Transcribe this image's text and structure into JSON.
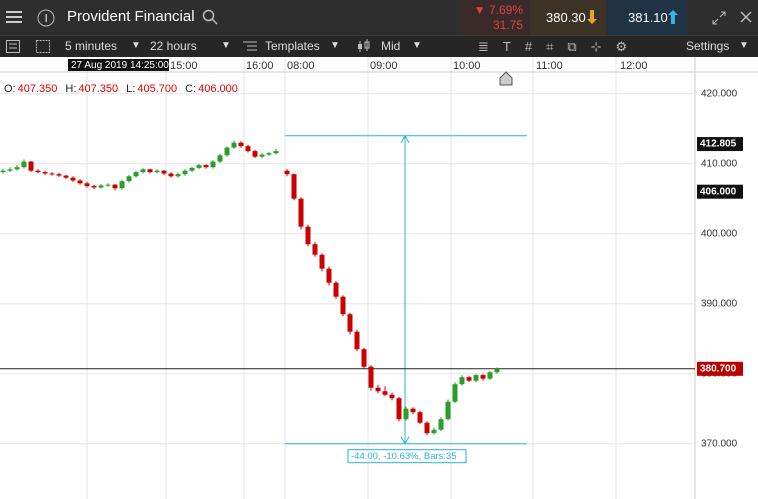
{
  "header": {
    "instrument": "Provident Financial",
    "change_pct": "▼ 7.69%",
    "change": "31.75",
    "sell": "380.30",
    "buy": "381.10"
  },
  "toolbar": {
    "interval": "5 minutes",
    "range": "22 hours",
    "templates": "Templates",
    "price_type": "Mid",
    "settings": "Settings"
  },
  "chart_data": {
    "type": "candlestick",
    "crosshair_time": "27 Aug 2019 14:25:00",
    "ohlc_labels": [
      {
        "label": "O:",
        "value": "407.350"
      },
      {
        "label": "H:",
        "value": "407.350"
      },
      {
        "label": "L:",
        "value": "405.700"
      },
      {
        "label": "C:",
        "value": "406.000"
      }
    ],
    "time_labels": [
      "15:00",
      "16:00",
      "08:00",
      "09:00",
      "10:00",
      "11:00",
      "12:00"
    ],
    "ylim": [
      362.1,
      423.1
    ],
    "yticks": [
      {
        "value": 370,
        "label": "370.000"
      },
      {
        "value": 380,
        "label": "380.000"
      },
      {
        "value": 390,
        "label": "390.000"
      },
      {
        "value": 400,
        "label": "400.000"
      },
      {
        "value": 410,
        "label": "410.000"
      },
      {
        "value": 420,
        "label": "420.000"
      }
    ],
    "price_tags": [
      {
        "value": 412.805,
        "label": "412.805"
      },
      {
        "value": 406,
        "label": "406.000"
      }
    ],
    "last_price": {
      "value": 380.7,
      "label": "380.700"
    },
    "measure": {
      "high": 414,
      "low": 370,
      "label": "-44.00, -10.63%, Bars:35"
    },
    "up_color": "#2a9d2a",
    "down_color": "#cc0000",
    "sessions": [
      {
        "candles": [
          [
            408.8,
            409.3,
            408.6,
            409.0
          ],
          [
            409.0,
            409.5,
            408.8,
            409.2
          ],
          [
            409.2,
            409.8,
            409.0,
            409.5
          ],
          [
            409.5,
            410.6,
            409.3,
            410.3
          ],
          [
            410.3,
            410.4,
            408.8,
            409.0
          ],
          [
            409.0,
            409.2,
            408.6,
            408.8
          ],
          [
            408.8,
            409.0,
            408.4,
            408.6
          ],
          [
            408.6,
            408.8,
            408.3,
            408.5
          ],
          [
            408.5,
            408.7,
            408.1,
            408.3
          ],
          [
            408.3,
            408.4,
            407.8,
            408.0
          ],
          [
            408.0,
            408.2,
            407.4,
            407.6
          ],
          [
            407.6,
            407.8,
            407.0,
            407.2
          ],
          [
            407.2,
            407.4,
            406.6,
            406.8
          ],
          [
            406.8,
            407.0,
            406.4,
            406.6
          ],
          [
            406.6,
            407.1,
            406.4,
            406.9
          ],
          [
            406.9,
            407.2,
            406.7,
            407.0
          ],
          [
            407.0,
            407.1,
            406.2,
            406.5
          ],
          [
            406.5,
            407.7,
            406.3,
            407.5
          ],
          [
            407.5,
            408.4,
            407.3,
            408.2
          ],
          [
            408.2,
            409.0,
            408.0,
            408.8
          ],
          [
            408.8,
            409.4,
            408.6,
            409.2
          ],
          [
            409.2,
            409.3,
            408.6,
            408.8
          ],
          [
            408.8,
            409.2,
            408.6,
            409.0
          ],
          [
            409.0,
            409.1,
            408.4,
            408.6
          ],
          [
            408.6,
            408.8,
            408.0,
            408.2
          ],
          [
            408.2,
            408.7,
            408.0,
            408.5
          ],
          [
            408.5,
            409.2,
            408.3,
            409.0
          ],
          [
            409.0,
            409.6,
            408.8,
            409.4
          ],
          [
            409.4,
            410.0,
            409.2,
            409.8
          ],
          [
            409.8,
            409.9,
            409.3,
            409.5
          ],
          [
            409.5,
            410.5,
            409.3,
            410.3
          ],
          [
            410.3,
            411.4,
            410.1,
            411.2
          ],
          [
            411.2,
            412.5,
            411.0,
            412.3
          ],
          [
            412.3,
            413.3,
            412.1,
            413.0
          ],
          [
            413.0,
            413.2,
            412.3,
            412.5
          ],
          [
            412.5,
            412.7,
            411.6,
            411.8
          ],
          [
            411.8,
            412.0,
            410.8,
            411.0
          ],
          [
            411.0,
            411.5,
            410.8,
            411.3
          ],
          [
            411.3,
            411.7,
            411.1,
            411.5
          ],
          [
            411.5,
            412.1,
            411.3,
            411.8
          ]
        ]
      },
      {
        "candles": [
          [
            409.0,
            409.2,
            408.2,
            408.5
          ],
          [
            408.5,
            408.6,
            404.8,
            405.0
          ],
          [
            405.0,
            405.2,
            400.6,
            401.0
          ],
          [
            401.0,
            401.3,
            398.2,
            398.5
          ],
          [
            398.5,
            398.8,
            396.7,
            397.0
          ],
          [
            397.0,
            397.2,
            394.6,
            395.0
          ],
          [
            395.0,
            395.3,
            392.6,
            393.0
          ],
          [
            393.0,
            393.2,
            390.7,
            391.0
          ],
          [
            391.0,
            391.2,
            388.2,
            388.5
          ],
          [
            388.5,
            388.7,
            385.6,
            386.0
          ],
          [
            386.0,
            386.3,
            383.2,
            383.5
          ],
          [
            383.5,
            383.7,
            380.7,
            381.0
          ],
          [
            381.0,
            381.2,
            377.6,
            378.0
          ],
          [
            378.0,
            378.4,
            377.2,
            377.5
          ],
          [
            377.5,
            378.2,
            376.8,
            377.0
          ],
          [
            377.0,
            377.3,
            376.2,
            376.5
          ],
          [
            376.5,
            376.7,
            373.2,
            373.5
          ],
          [
            373.5,
            375.3,
            373.3,
            375.0
          ],
          [
            375.0,
            375.2,
            374.2,
            374.5
          ],
          [
            374.5,
            374.7,
            372.8,
            373.0
          ],
          [
            373.0,
            373.2,
            371.2,
            371.5
          ],
          [
            371.5,
            372.3,
            371.3,
            372.0
          ],
          [
            372.0,
            373.8,
            371.8,
            373.5
          ],
          [
            373.5,
            376.3,
            373.3,
            376.0
          ],
          [
            376.0,
            378.8,
            375.8,
            378.5
          ],
          [
            378.5,
            379.8,
            378.3,
            379.5
          ],
          [
            379.5,
            379.7,
            378.8,
            379.0
          ],
          [
            379.0,
            380.0,
            378.8,
            379.8
          ],
          [
            379.8,
            380.0,
            379.0,
            379.3
          ],
          [
            379.3,
            380.4,
            379.1,
            380.2
          ],
          [
            380.2,
            380.9,
            380.0,
            380.7
          ]
        ]
      }
    ]
  }
}
